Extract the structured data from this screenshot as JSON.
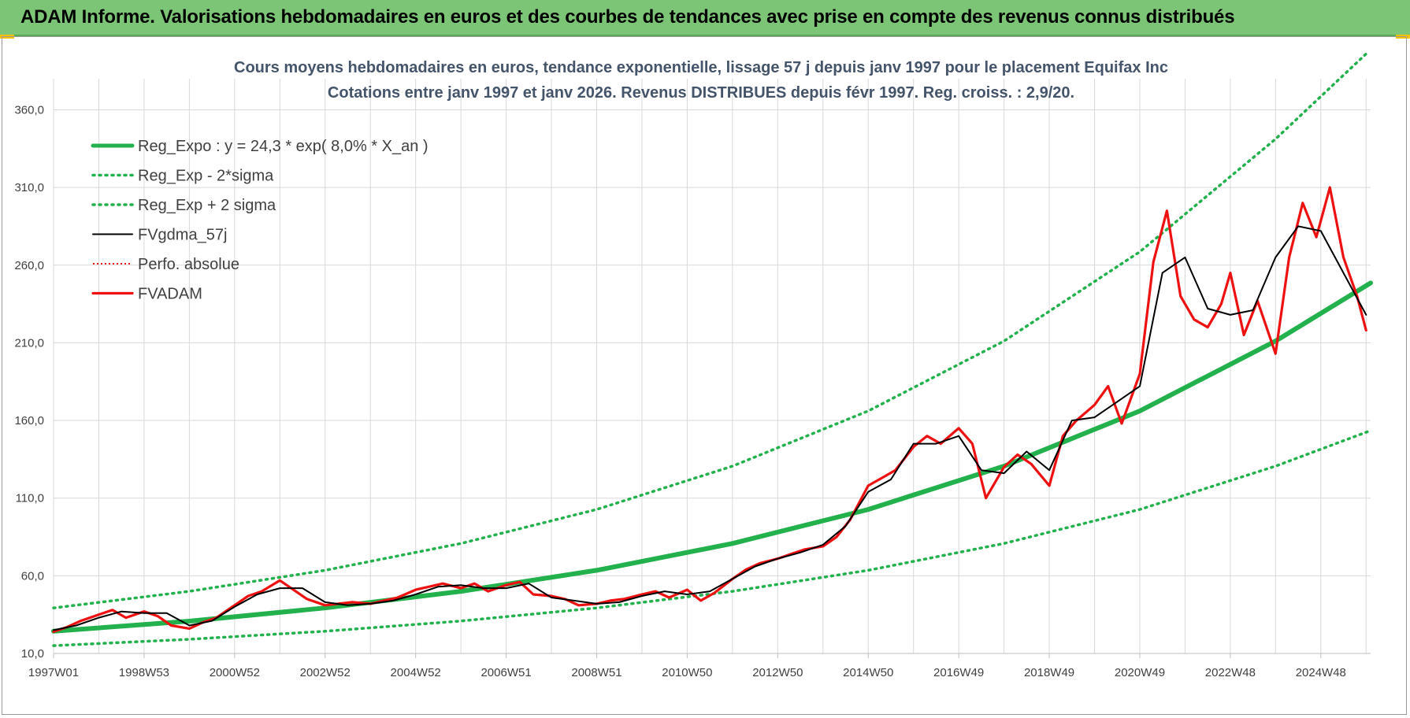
{
  "header": {
    "title": "ADAM Informe. Valorisations hebdomadaires en euros et des courbes de tendances avec prise en compte des revenus connus distribués"
  },
  "colors": {
    "banner": "#7cc576",
    "reg_expo": "#22b14c",
    "sigma_lines": "#22b14c",
    "fvgdma": "#000000",
    "fvadam": "#ee1111",
    "perfo": "#ee1111",
    "grid": "#d9d9d9"
  },
  "chart_data": {
    "type": "line",
    "title": "Cours moyens hebdomadaires en euros, tendance exponentielle, lissage 57 j depuis janv 1997  pour le  placement Equifax Inc",
    "subtitle": "Cotations entre janv 1997 et janv 2026. Revenus DISTRIBUES depuis févr 1997. Reg. croiss. : 2,9/20.",
    "xlabel": "",
    "ylabel": "",
    "ylim": [
      10,
      380
    ],
    "yticks": [
      "10,0",
      "60,0",
      "110,0",
      "160,0",
      "210,0",
      "260,0",
      "310,0",
      "360,0"
    ],
    "ytick_values": [
      10,
      60,
      110,
      160,
      210,
      260,
      310,
      360
    ],
    "xlim": [
      1997.0,
      2026.1
    ],
    "xticks": [
      "1997W01",
      "1998W53",
      "2000W52",
      "2002W52",
      "2004W52",
      "2006W51",
      "2008W51",
      "2010W50",
      "2012W50",
      "2014W50",
      "2016W49",
      "2018W49",
      "2020W49",
      "2022W48",
      "2024W48"
    ],
    "xtick_values": [
      1997.0,
      1999.0,
      2001.0,
      2003.0,
      2005.0,
      2007.0,
      2009.0,
      2011.0,
      2013.0,
      2015.0,
      2017.0,
      2019.0,
      2021.0,
      2023.0,
      2025.0
    ],
    "grid": true,
    "legend_position": "top-left",
    "series": [
      {
        "name": "Reg_Expo : y = 24,3 * exp( 8,0% *  X_an )",
        "style": "solid-thick",
        "x": [
          1997.0,
          2000.0,
          2003.0,
          2006.0,
          2009.0,
          2012.0,
          2015.0,
          2018.0,
          2021.0,
          2024.0,
          2026.1
        ],
        "values": [
          24.3,
          30.8,
          39.3,
          50.0,
          63.5,
          80.8,
          102.7,
          130.6,
          166.1,
          211.1,
          248.5
        ]
      },
      {
        "name": "Reg_Exp - 2*sigma",
        "style": "dotted",
        "x": [
          1997.0,
          2000.0,
          2003.0,
          2006.0,
          2009.0,
          2012.0,
          2015.0,
          2018.0,
          2021.0,
          2024.0,
          2026.1
        ],
        "values": [
          15.0,
          19.1,
          24.3,
          30.9,
          39.3,
          50.0,
          63.5,
          80.8,
          102.7,
          130.6,
          153.5
        ]
      },
      {
        "name": "Reg_Exp + 2 sigma",
        "style": "dotted",
        "x": [
          1997.0,
          2000.0,
          2003.0,
          2006.0,
          2009.0,
          2012.0,
          2015.0,
          2018.0,
          2021.0,
          2024.0,
          2026.0
        ],
        "values": [
          39.3,
          50.0,
          63.5,
          80.8,
          102.7,
          130.6,
          166.1,
          211.1,
          268.6,
          341.2,
          396.0
        ]
      },
      {
        "name": "FVgdma_57j",
        "style": "solid-thin",
        "x": [
          1997.0,
          1997.5,
          1998.0,
          1998.5,
          1999.0,
          1999.5,
          2000.0,
          2000.5,
          2001.0,
          2001.5,
          2002.0,
          2002.5,
          2003.0,
          2003.5,
          2004.0,
          2004.5,
          2005.0,
          2005.5,
          2006.0,
          2006.5,
          2007.0,
          2007.5,
          2008.0,
          2008.5,
          2009.0,
          2009.5,
          2010.0,
          2010.5,
          2011.0,
          2011.5,
          2012.0,
          2012.5,
          2013.0,
          2013.5,
          2014.0,
          2014.5,
          2015.0,
          2015.5,
          2016.0,
          2016.5,
          2017.0,
          2017.5,
          2018.0,
          2018.5,
          2019.0,
          2019.5,
          2020.0,
          2020.5,
          2021.0,
          2021.5,
          2022.0,
          2022.5,
          2023.0,
          2023.5,
          2024.0,
          2024.5,
          2025.0,
          2025.5,
          2026.0
        ],
        "values": [
          25,
          28,
          33,
          37,
          36,
          36,
          28,
          31,
          40,
          48,
          52,
          52,
          43,
          41,
          42,
          44,
          48,
          53,
          54,
          52,
          52,
          55,
          46,
          44,
          42,
          43,
          47,
          50,
          48,
          50,
          58,
          66,
          71,
          75,
          80,
          92,
          114,
          122,
          145,
          145,
          150,
          128,
          126,
          140,
          128,
          160,
          162,
          172,
          182,
          255,
          265,
          232,
          228,
          231,
          265,
          285,
          282,
          255,
          228
        ]
      },
      {
        "name": "Perfo. absolue",
        "style": "dotted-thin",
        "x": [],
        "values": []
      },
      {
        "name": "FVADAM",
        "style": "solid-thick",
        "x": [
          1997.0,
          1997.3,
          1997.6,
          1998.0,
          1998.3,
          1998.6,
          1999.0,
          1999.3,
          1999.6,
          2000.0,
          2000.3,
          2000.6,
          2001.0,
          2001.3,
          2001.6,
          2002.0,
          2002.3,
          2002.6,
          2003.0,
          2003.3,
          2003.6,
          2004.0,
          2004.3,
          2004.6,
          2005.0,
          2005.3,
          2005.6,
          2006.0,
          2006.3,
          2006.6,
          2007.0,
          2007.3,
          2007.6,
          2008.0,
          2008.3,
          2008.6,
          2009.0,
          2009.3,
          2009.6,
          2010.0,
          2010.3,
          2010.6,
          2011.0,
          2011.3,
          2011.6,
          2012.0,
          2012.3,
          2012.6,
          2013.0,
          2013.3,
          2013.6,
          2014.0,
          2014.3,
          2014.6,
          2015.0,
          2015.3,
          2015.6,
          2016.0,
          2016.3,
          2016.6,
          2017.0,
          2017.3,
          2017.6,
          2018.0,
          2018.3,
          2018.6,
          2019.0,
          2019.3,
          2019.6,
          2020.0,
          2020.3,
          2020.6,
          2021.0,
          2021.3,
          2021.6,
          2021.9,
          2022.2,
          2022.5,
          2022.8,
          2023.0,
          2023.3,
          2023.6,
          2024.0,
          2024.3,
          2024.6,
          2024.9,
          2025.2,
          2025.5,
          2025.8,
          2026.0
        ],
        "values": [
          24,
          27,
          31,
          35,
          38,
          33,
          37,
          34,
          28,
          26,
          30,
          33,
          41,
          47,
          50,
          57,
          51,
          45,
          41,
          42,
          43,
          42,
          44,
          46,
          51,
          53,
          55,
          52,
          55,
          50,
          54,
          56,
          48,
          47,
          45,
          41,
          42,
          44,
          45,
          48,
          50,
          46,
          51,
          44,
          49,
          58,
          64,
          68,
          71,
          74,
          77,
          79,
          85,
          96,
          118,
          123,
          128,
          143,
          150,
          145,
          155,
          145,
          110,
          130,
          138,
          132,
          118,
          150,
          160,
          170,
          182,
          158,
          190,
          262,
          295,
          240,
          225,
          220,
          235,
          255,
          215,
          237,
          203,
          265,
          300,
          278,
          310,
          265,
          240,
          218
        ]
      }
    ]
  }
}
